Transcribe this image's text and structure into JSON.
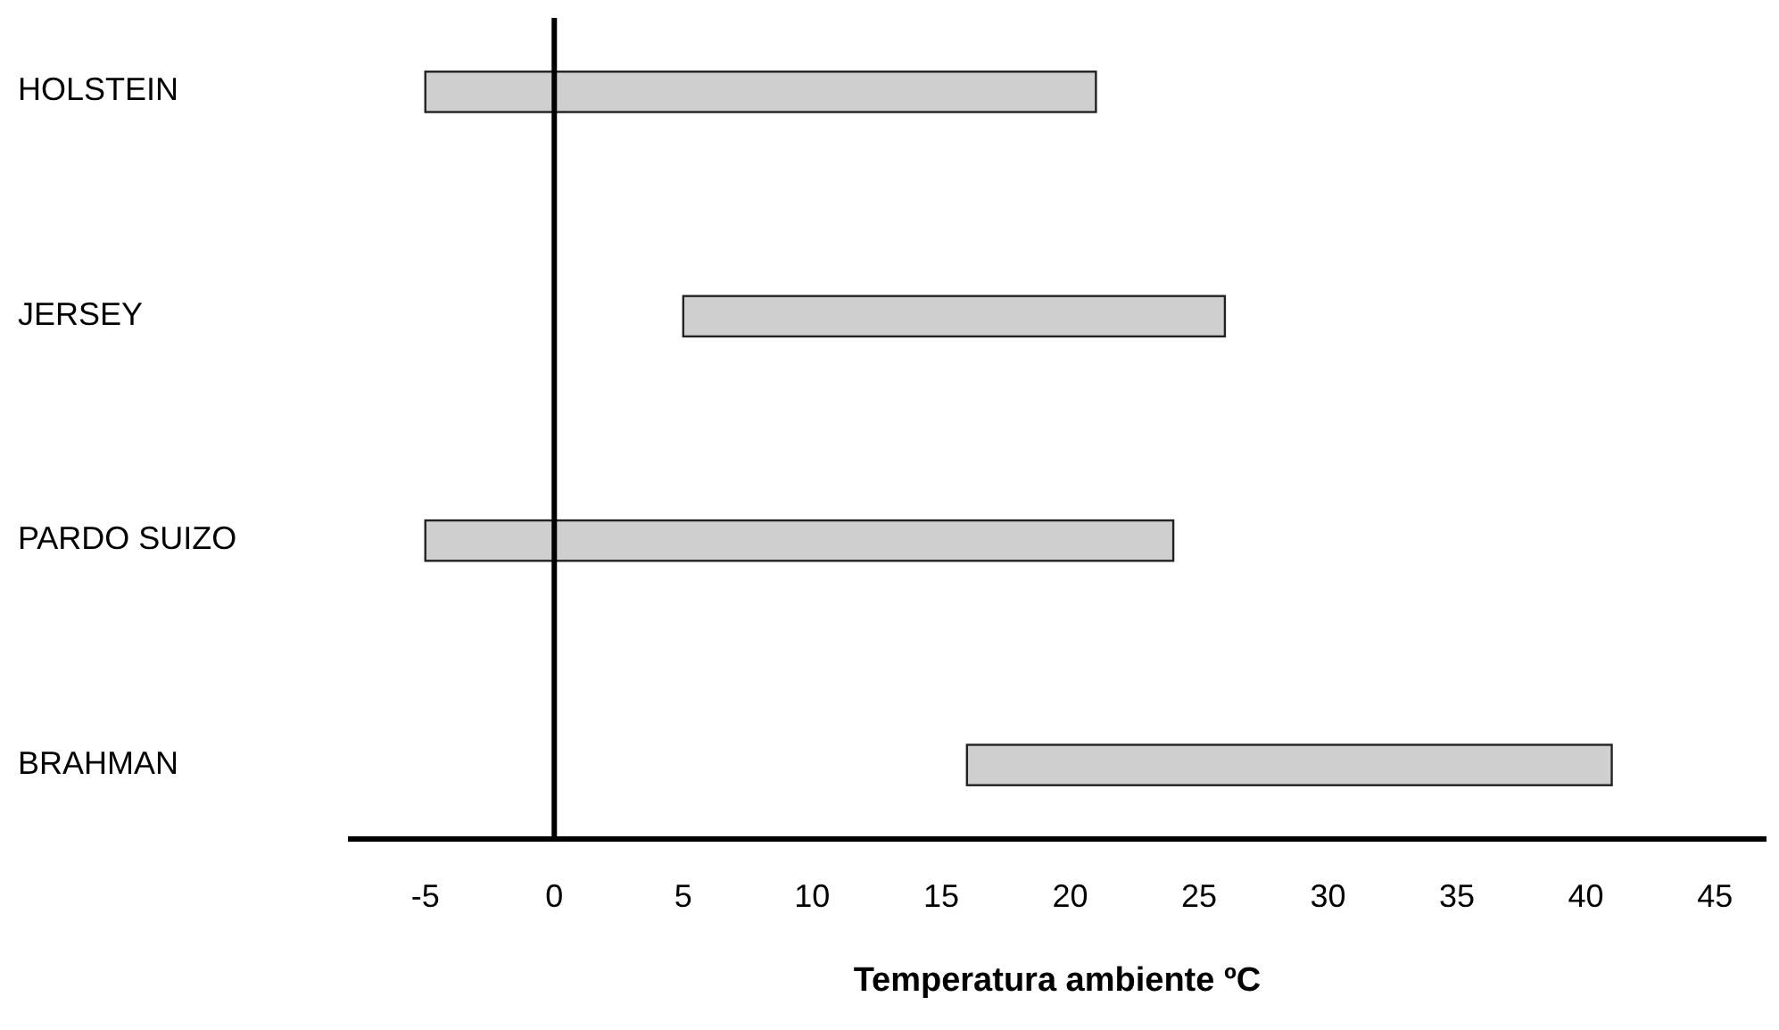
{
  "chart_data": {
    "type": "bar",
    "orientation": "horizontal",
    "xlabel": "Temperatura ambiente ºC",
    "categories": [
      "HOLSTEIN",
      "JERSEY",
      "PARDO SUIZO",
      "BRAHMAN"
    ],
    "base": [
      -5,
      5,
      -5,
      16
    ],
    "values": [
      26,
      21,
      29,
      25
    ],
    "color": "#cfcfcf",
    "xlim": [
      -8,
      47
    ],
    "xticks": [
      -5,
      0,
      5,
      10,
      15,
      20,
      25,
      30,
      35,
      40,
      45
    ]
  }
}
